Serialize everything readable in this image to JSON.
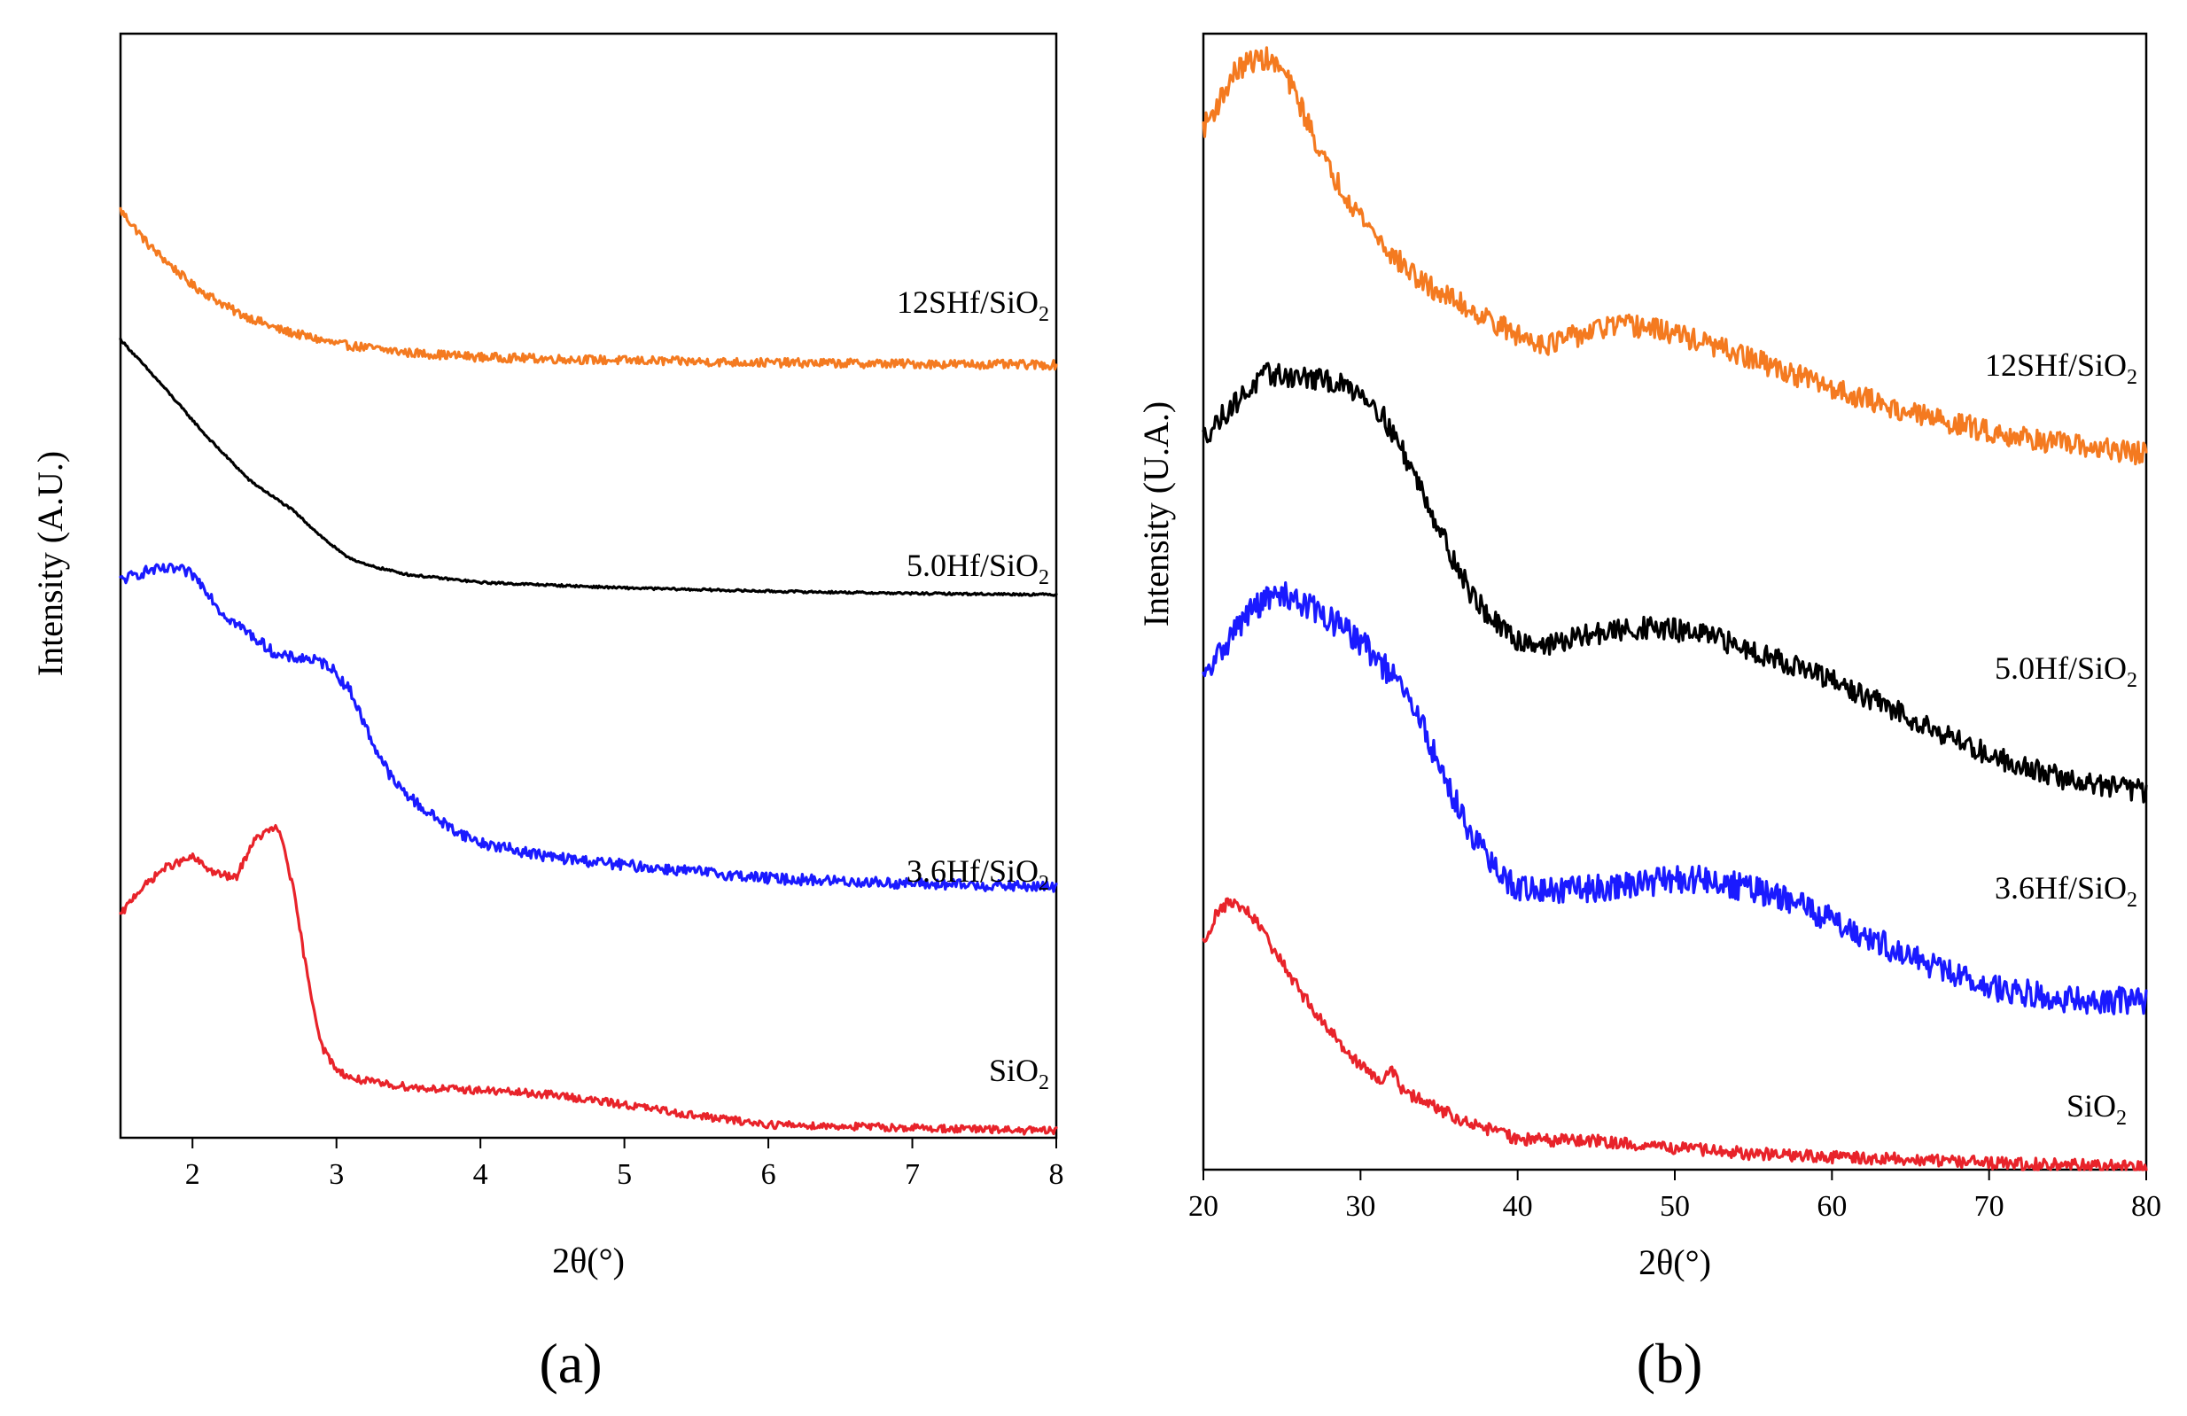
{
  "chart_data": [
    {
      "panel": "a",
      "panel_label": "(a)",
      "type": "line",
      "xlabel": "2θ(°)",
      "ylabel": "Intensity (A.U.)",
      "xlim": [
        1.5,
        8
      ],
      "xticks": [
        2,
        3,
        4,
        5,
        6,
        7,
        8
      ],
      "ylim": [
        0,
        100
      ],
      "ytick_labels": "none",
      "series": [
        {
          "name": "12SHf/SiO2",
          "label_main": "12SHf/SiO",
          "label_sub": "2",
          "color": "#f47a20",
          "noise": 0.4,
          "x": [
            1.5,
            1.7,
            2.0,
            2.3,
            2.6,
            3.0,
            3.5,
            4.0,
            5.0,
            6.0,
            7.0,
            8.0
          ],
          "y": [
            84,
            80.8,
            77.2,
            74.8,
            73.2,
            71.9,
            71.1,
            70.7,
            70.4,
            70.2,
            70.1,
            70.0
          ]
        },
        {
          "name": "5.0Hf/SiO2",
          "label_main": "5.0Hf/SiO",
          "label_sub": "2",
          "color": "#000000",
          "noise": 0.1,
          "x": [
            1.5,
            1.8,
            2.1,
            2.4,
            2.7,
            2.9,
            3.05,
            3.2,
            3.5,
            4.0,
            5.0,
            6.0,
            7.0,
            8.0
          ],
          "y": [
            72.3,
            68.0,
            63.5,
            59.5,
            56.8,
            54.4,
            52.8,
            51.9,
            51.0,
            50.3,
            49.8,
            49.5,
            49.3,
            49.2
          ]
        },
        {
          "name": "3.6Hf/SiO2",
          "label_main": "3.6Hf/SiO",
          "label_sub": "2",
          "color": "#1a1aff",
          "noise": 0.5,
          "x": [
            1.5,
            1.7,
            1.9,
            2.0,
            2.1,
            2.2,
            2.4,
            2.6,
            2.8,
            2.95,
            3.1,
            3.25,
            3.4,
            3.6,
            3.8,
            4.0,
            4.5,
            5.0,
            6.0,
            7.0,
            8.0
          ],
          "y": [
            50.5,
            51.4,
            51.5,
            51.0,
            49.6,
            47.6,
            45.6,
            43.6,
            43.4,
            42.8,
            40.4,
            35.8,
            32.2,
            29.8,
            28.0,
            26.7,
            25.4,
            24.7,
            23.5,
            23.0,
            22.7
          ]
        },
        {
          "name": "SiO2",
          "label_main": "SiO",
          "label_sub": "2",
          "color": "#e8232a",
          "noise": 0.35,
          "x": [
            1.5,
            1.6,
            1.8,
            2.0,
            2.15,
            2.3,
            2.42,
            2.5,
            2.57,
            2.62,
            2.7,
            2.8,
            2.9,
            3.0,
            3.1,
            3.3,
            3.6,
            4.0,
            4.5,
            5.0,
            5.5,
            6.0,
            7.0,
            8.0
          ],
          "y": [
            20.1,
            22.0,
            24.4,
            25.4,
            24.0,
            23.5,
            26.8,
            27.6,
            28.1,
            27.2,
            22.5,
            14.5,
            8.2,
            6.2,
            5.4,
            4.9,
            4.5,
            4.3,
            3.9,
            3.0,
            2.0,
            1.2,
            0.9,
            0.6
          ]
        }
      ]
    },
    {
      "panel": "b",
      "panel_label": "(b)",
      "type": "line",
      "xlabel": "2θ(°)",
      "ylabel": "Intensity (U.A.)",
      "xlim": [
        20,
        80
      ],
      "xticks": [
        20,
        30,
        40,
        50,
        60,
        70,
        80
      ],
      "ylim": [
        0,
        100
      ],
      "ytick_labels": "none",
      "series": [
        {
          "name": "12SHf/SiO2",
          "label_main": "12SHf/SiO",
          "label_sub": "2",
          "color": "#f47a20",
          "noise": 1.0,
          "x": [
            20,
            21,
            22,
            23,
            24,
            25,
            26,
            27,
            28,
            30,
            32,
            34,
            36,
            38,
            40,
            42,
            44,
            46,
            48,
            50,
            52,
            55,
            60,
            65,
            70,
            75,
            80
          ],
          "y": [
            91.7,
            94,
            96.6,
            97.6,
            97.8,
            96.8,
            94.3,
            91,
            88,
            84,
            80.5,
            78,
            76.5,
            75,
            73.4,
            72.7,
            73.5,
            74.3,
            74.2,
            73.6,
            72.7,
            71.3,
            68.8,
            66.6,
            65,
            63.8,
            63.0
          ]
        },
        {
          "name": "5.0Hf/SiO2",
          "label_main": "5.0Hf/SiO",
          "label_sub": "2",
          "color": "#000000",
          "noise": 1.0,
          "x": [
            20,
            22,
            24,
            26,
            28,
            30,
            31,
            32,
            33,
            34,
            35,
            36,
            37,
            38,
            39,
            40,
            42,
            45,
            48,
            50,
            52,
            55,
            58,
            60,
            65,
            70,
            75,
            80
          ],
          "y": [
            64.5,
            67.5,
            70,
            69.8,
            69.4,
            68.5,
            67.2,
            65,
            62.4,
            59.6,
            56.5,
            53.5,
            50.8,
            49,
            47.5,
            46.6,
            46.2,
            47.2,
            47.7,
            47.5,
            47.0,
            45.7,
            44.2,
            43.0,
            39.8,
            36.5,
            34.3,
            33.3
          ]
        },
        {
          "name": "3.6Hf/SiO2",
          "label_main": "3.6Hf/SiO",
          "label_sub": "2",
          "color": "#1a1aff",
          "noise": 1.2,
          "x": [
            20,
            21,
            22,
            23,
            24,
            25,
            26,
            28,
            30,
            31,
            32,
            33,
            34,
            35,
            36,
            37,
            38,
            39,
            40,
            42,
            45,
            48,
            50,
            52,
            55,
            58,
            60,
            65,
            70,
            75,
            80
          ],
          "y": [
            43,
            45.4,
            47.5,
            49.2,
            50.2,
            50.6,
            50.2,
            48.5,
            46.5,
            45.0,
            43.5,
            41.5,
            39.0,
            35.5,
            32.5,
            29.8,
            27.5,
            25.7,
            24.8,
            24.5,
            24.8,
            25.2,
            25.6,
            25.5,
            24.7,
            23.3,
            22.0,
            18.7,
            16.0,
            15.0,
            14.8
          ]
        },
        {
          "name": "SiO2",
          "label_main": "SiO",
          "label_sub": "2",
          "color": "#e8232a",
          "noise": 0.55,
          "x": [
            20,
            20.7,
            21.4,
            22,
            22.8,
            23.6,
            24.5,
            25.5,
            26.5,
            27.5,
            28.5,
            29.5,
            30.5,
            31.5,
            32.0,
            32.3,
            32.7,
            34,
            35.5,
            37,
            39,
            40,
            42,
            45,
            50,
            55,
            60,
            65,
            70,
            75,
            80
          ],
          "y": [
            19.9,
            22.2,
            23.3,
            23.4,
            22.7,
            21.3,
            19.3,
            17.2,
            15.0,
            13.2,
            11.5,
            9.9,
            8.6,
            7.8,
            8.9,
            8.2,
            6.8,
            6.1,
            5.0,
            4.0,
            3.2,
            2.7,
            2.6,
            2.5,
            1.9,
            1.4,
            1.1,
            0.9,
            0.6,
            0.4,
            0.2
          ]
        }
      ]
    }
  ]
}
